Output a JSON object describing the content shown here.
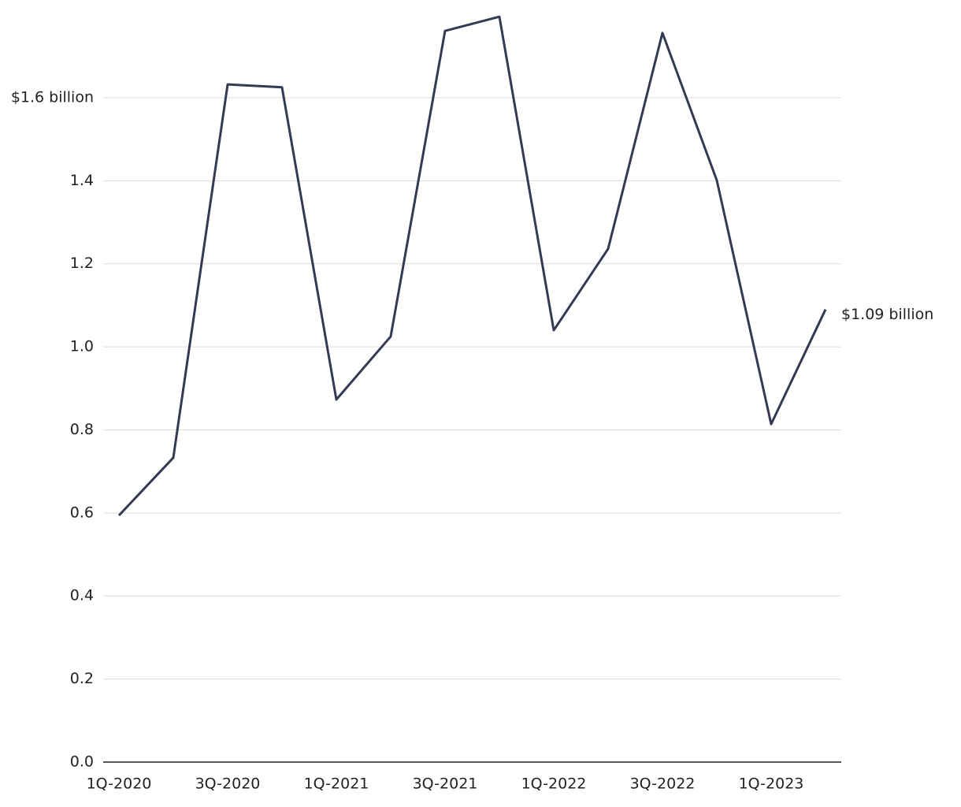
{
  "chart_data": {
    "type": "line",
    "categories": [
      "1Q-2020",
      null,
      "3Q-2020",
      null,
      "1Q-2021",
      null,
      "3Q-2021",
      null,
      "1Q-2022",
      null,
      "3Q-2022",
      null,
      "1Q-2023",
      null
    ],
    "values": [
      0.594,
      0.733,
      1.632,
      1.625,
      0.873,
      1.025,
      1.761,
      1.795,
      1.04,
      1.236,
      1.756,
      1.401,
      0.814,
      1.09
    ],
    "value_labels": [
      null,
      null,
      null,
      null,
      null,
      null,
      null,
      null,
      null,
      null,
      null,
      null,
      null,
      "$1.09 billion"
    ],
    "color": "#343a52",
    "ylim": [
      0,
      1.8
    ],
    "yticks": [
      {
        "value": 0,
        "label": "0.0"
      },
      0.2,
      0.4,
      0.6,
      0.8,
      {
        "value": 1,
        "label": "1.0"
      },
      1.2,
      1.4,
      {
        "value": 1.6,
        "label": "$1.6 billion"
      }
    ],
    "grid": true
  }
}
